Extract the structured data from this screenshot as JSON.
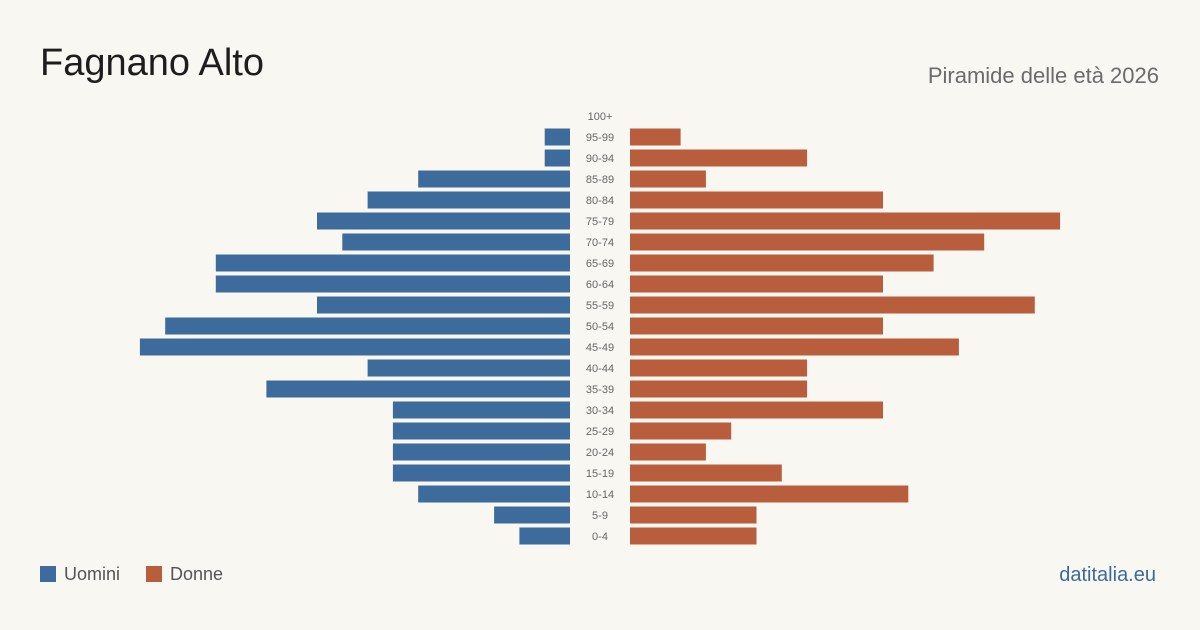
{
  "title": "Fagnano Alto",
  "subtitle": "Piramide delle età 2026",
  "source": "datitalia.eu",
  "colors": {
    "men": "#3d6b9b",
    "women": "#b95e3c",
    "background": "#f9f7f2"
  },
  "chart_data": {
    "type": "bar",
    "orientation": "horizontal-pyramid",
    "categories": [
      "100+",
      "95-99",
      "90-94",
      "85-89",
      "80-84",
      "75-79",
      "70-74",
      "65-69",
      "60-64",
      "55-59",
      "50-54",
      "45-49",
      "40-44",
      "35-39",
      "30-34",
      "25-29",
      "20-24",
      "15-19",
      "10-14",
      "5-9",
      "0-4"
    ],
    "series": [
      {
        "name": "Uomini",
        "values": [
          0,
          1,
          1,
          6,
          8,
          10,
          9,
          14,
          14,
          10,
          16,
          17,
          8,
          12,
          7,
          7,
          7,
          7,
          6,
          3,
          2
        ]
      },
      {
        "name": "Donne",
        "values": [
          0,
          2,
          7,
          3,
          10,
          17,
          14,
          12,
          10,
          16,
          10,
          13,
          7,
          7,
          10,
          4,
          3,
          6,
          11,
          5,
          5
        ]
      }
    ],
    "max_value": 17,
    "legend_position": "bottom-left"
  }
}
